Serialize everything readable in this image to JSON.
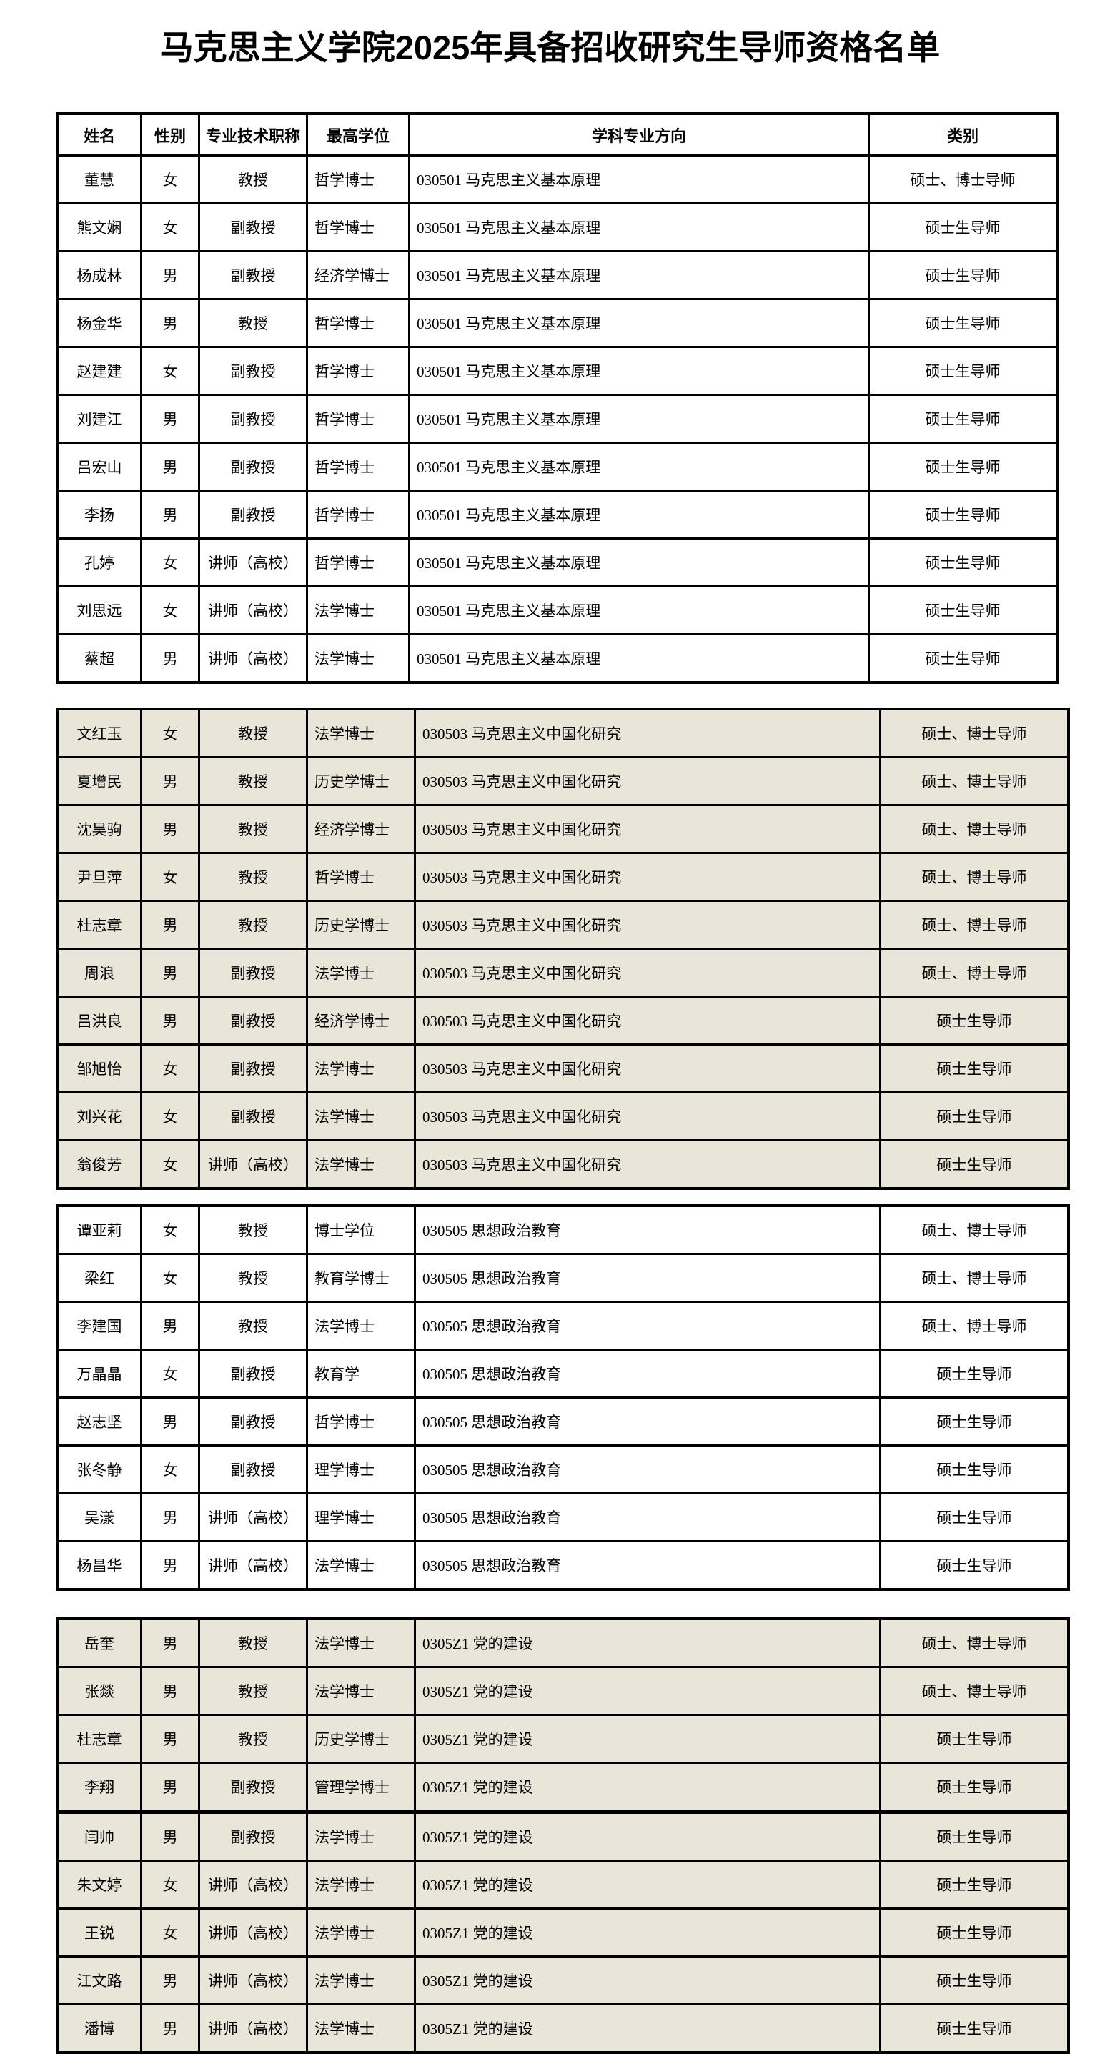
{
  "page": {
    "title": "马克思主义学院2025年具备招收研究生导师资格名单"
  },
  "colors": {
    "page_bg": "#ffffff",
    "alt_section_bg": "#e9e6d9",
    "border": "#000000"
  },
  "table": {
    "headers": [
      "姓名",
      "性别",
      "专业技术职称",
      "最高学位",
      "学科专业方向",
      "类别"
    ],
    "sections": [
      {
        "bg": "#ffffff",
        "rows": [
          {
            "name": "董慧",
            "gender": "女",
            "title": "教授",
            "degree": "哲学博士",
            "major": "030501 马克思主义基本原理",
            "category": "硕士、博士导师"
          },
          {
            "name": "熊文娴",
            "gender": "女",
            "title": "副教授",
            "degree": "哲学博士",
            "major": "030501 马克思主义基本原理",
            "category": "硕士生导师"
          },
          {
            "name": "杨成林",
            "gender": "男",
            "title": "副教授",
            "degree": "经济学博士",
            "major": "030501 马克思主义基本原理",
            "category": "硕士生导师"
          },
          {
            "name": "杨金华",
            "gender": "男",
            "title": "教授",
            "degree": "哲学博士",
            "major": "030501 马克思主义基本原理",
            "category": "硕士生导师"
          },
          {
            "name": "赵建建",
            "gender": "女",
            "title": "副教授",
            "degree": "哲学博士",
            "major": "030501 马克思主义基本原理",
            "category": "硕士生导师"
          },
          {
            "name": "刘建江",
            "gender": "男",
            "title": "副教授",
            "degree": "哲学博士",
            "major": "030501 马克思主义基本原理",
            "category": "硕士生导师"
          },
          {
            "name": "吕宏山",
            "gender": "男",
            "title": "副教授",
            "degree": "哲学博士",
            "major": "030501 马克思主义基本原理",
            "category": "硕士生导师"
          },
          {
            "name": "李扬",
            "gender": "男",
            "title": "副教授",
            "degree": "哲学博士",
            "major": "030501 马克思主义基本原理",
            "category": "硕士生导师"
          },
          {
            "name": "孔婷",
            "gender": "女",
            "title": "讲师（高校）",
            "degree": "哲学博士",
            "major": "030501 马克思主义基本原理",
            "category": "硕士生导师"
          },
          {
            "name": "刘思远",
            "gender": "女",
            "title": "讲师（高校）",
            "degree": "法学博士",
            "major": "030501 马克思主义基本原理",
            "category": "硕士生导师"
          },
          {
            "name": "蔡超",
            "gender": "男",
            "title": "讲师（高校）",
            "degree": "法学博士",
            "major": "030501 马克思主义基本原理",
            "category": "硕士生导师"
          }
        ]
      },
      {
        "bg": "#e9e6d9",
        "rows": [
          {
            "name": "文红玉",
            "gender": "女",
            "title": "教授",
            "degree": "法学博士",
            "major": "030503 马克思主义中国化研究",
            "category": "硕士、博士导师"
          },
          {
            "name": "夏增民",
            "gender": "男",
            "title": "教授",
            "degree": "历史学博士",
            "major": "030503 马克思主义中国化研究",
            "category": "硕士、博士导师"
          },
          {
            "name": "沈昊驹",
            "gender": "男",
            "title": "教授",
            "degree": "经济学博士",
            "major": "030503 马克思主义中国化研究",
            "category": "硕士、博士导师"
          },
          {
            "name": "尹旦萍",
            "gender": "女",
            "title": "教授",
            "degree": "哲学博士",
            "major": "030503 马克思主义中国化研究",
            "category": "硕士、博士导师"
          },
          {
            "name": "杜志章",
            "gender": "男",
            "title": "教授",
            "degree": "历史学博士",
            "major": "030503 马克思主义中国化研究",
            "category": "硕士、博士导师"
          },
          {
            "name": "周浪",
            "gender": "男",
            "title": "副教授",
            "degree": "法学博士",
            "major": "030503 马克思主义中国化研究",
            "category": "硕士、博士导师"
          },
          {
            "name": "吕洪良",
            "gender": "男",
            "title": "副教授",
            "degree": "经济学博士",
            "major": "030503 马克思主义中国化研究",
            "category": "硕士生导师"
          },
          {
            "name": "邹旭怡",
            "gender": "女",
            "title": "副教授",
            "degree": "法学博士",
            "major": "030503 马克思主义中国化研究",
            "category": "硕士生导师"
          },
          {
            "name": "刘兴花",
            "gender": "女",
            "title": "副教授",
            "degree": "法学博士",
            "major": "030503 马克思主义中国化研究",
            "category": "硕士生导师"
          },
          {
            "name": "翁俊芳",
            "gender": "女",
            "title": "讲师（高校）",
            "degree": "法学博士",
            "major": "030503 马克思主义中国化研究",
            "category": "硕士生导师"
          }
        ]
      },
      {
        "bg": "#ffffff",
        "rows": [
          {
            "name": "谭亚莉",
            "gender": "女",
            "title": "教授",
            "degree": "博士学位",
            "major": "030505 思想政治教育",
            "category": "硕士、博士导师"
          },
          {
            "name": "梁红",
            "gender": "女",
            "title": "教授",
            "degree": "教育学博士",
            "major": "030505 思想政治教育",
            "category": "硕士、博士导师"
          },
          {
            "name": "李建国",
            "gender": "男",
            "title": "教授",
            "degree": "法学博士",
            "major": "030505 思想政治教育",
            "category": "硕士、博士导师"
          },
          {
            "name": "万晶晶",
            "gender": "女",
            "title": "副教授",
            "degree": "教育学",
            "major": "030505 思想政治教育",
            "category": "硕士生导师"
          },
          {
            "name": "赵志坚",
            "gender": "男",
            "title": "副教授",
            "degree": "哲学博士",
            "major": "030505 思想政治教育",
            "category": "硕士生导师"
          },
          {
            "name": "张冬静",
            "gender": "女",
            "title": "副教授",
            "degree": "理学博士",
            "major": "030505 思想政治教育",
            "category": "硕士生导师"
          },
          {
            "name": "吴漾",
            "gender": "男",
            "title": "讲师（高校）",
            "degree": "理学博士",
            "major": "030505 思想政治教育",
            "category": "硕士生导师"
          },
          {
            "name": "杨昌华",
            "gender": "男",
            "title": "讲师（高校）",
            "degree": "法学博士",
            "major": "030505 思想政治教育",
            "category": "硕士生导师"
          }
        ]
      },
      {
        "bg": "#e9e6d9",
        "rows": [
          {
            "name": "岳奎",
            "gender": "男",
            "title": "教授",
            "degree": "法学博士",
            "major": "0305Z1 党的建设",
            "category": "硕士、博士导师"
          },
          {
            "name": "张燚",
            "gender": "男",
            "title": "教授",
            "degree": "法学博士",
            "major": "0305Z1 党的建设",
            "category": "硕士、博士导师"
          },
          {
            "name": "杜志章",
            "gender": "男",
            "title": "教授",
            "degree": "历史学博士",
            "major": "0305Z1 党的建设",
            "category": "硕士生导师"
          },
          {
            "name": "李翔",
            "gender": "男",
            "title": "副教授",
            "degree": "管理学博士",
            "major": "0305Z1 党的建设",
            "category": "硕士生导师"
          },
          {
            "name": "闫帅",
            "gender": "男",
            "title": "副教授",
            "degree": "法学博士",
            "major": "0305Z1 党的建设",
            "category": "硕士生导师"
          },
          {
            "name": "朱文婷",
            "gender": "女",
            "title": "讲师（高校）",
            "degree": "法学博士",
            "major": "0305Z1 党的建设",
            "category": "硕士生导师"
          },
          {
            "name": "王锐",
            "gender": "女",
            "title": "讲师（高校）",
            "degree": "法学博士",
            "major": "0305Z1 党的建设",
            "category": "硕士生导师"
          },
          {
            "name": "江文路",
            "gender": "男",
            "title": "讲师（高校）",
            "degree": "法学博士",
            "major": "0305Z1 党的建设",
            "category": "硕士生导师"
          },
          {
            "name": "潘博",
            "gender": "男",
            "title": "讲师（高校）",
            "degree": "法学博士",
            "major": "0305Z1 党的建设",
            "category": "硕士生导师"
          }
        ]
      }
    ]
  }
}
